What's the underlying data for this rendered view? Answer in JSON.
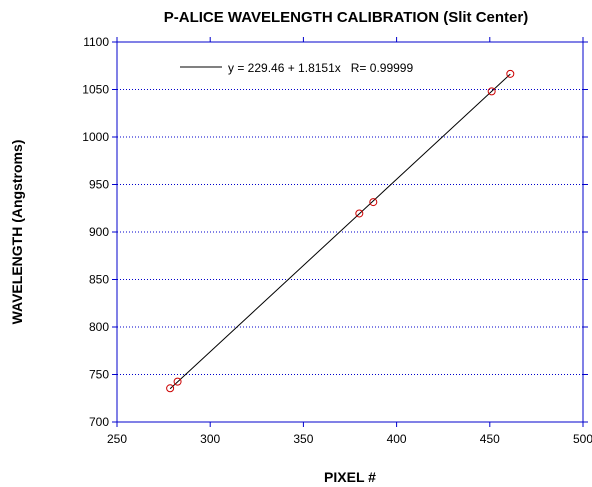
{
  "chart_data": {
    "type": "scatter",
    "title": "P-ALICE WAVELENGTH CALIBRATION (Slit Center)",
    "xlabel": "PIXEL #",
    "ylabel": "WAVELENGTH (Angstroms)",
    "xlim": [
      250,
      500
    ],
    "ylim": [
      700,
      1100
    ],
    "xticks": [
      250,
      300,
      350,
      400,
      450,
      500
    ],
    "yticks": [
      700,
      750,
      800,
      850,
      900,
      950,
      1000,
      1050,
      1100
    ],
    "grid": "horizontal dotted",
    "legend_position": "top-left",
    "series": [
      {
        "type": "scatter",
        "marker": "open-circle",
        "color": "#cc0000",
        "x": [
          278.5,
          282.5,
          380,
          387.5,
          451,
          461
        ],
        "y": [
          735.5,
          742.5,
          919.5,
          931.5,
          1048,
          1066.5
        ]
      },
      {
        "type": "line",
        "name": "y = 229.46 + 1.8151x   R= 0.99999",
        "color": "#000000",
        "intercept": 229.46,
        "slope": 1.8151,
        "x_range": [
          278.5,
          461
        ]
      }
    ],
    "colors": {
      "grid": "#0000cc",
      "axis": "#0000cc",
      "marker": "#cc0000",
      "fit_line": "#000000"
    }
  }
}
